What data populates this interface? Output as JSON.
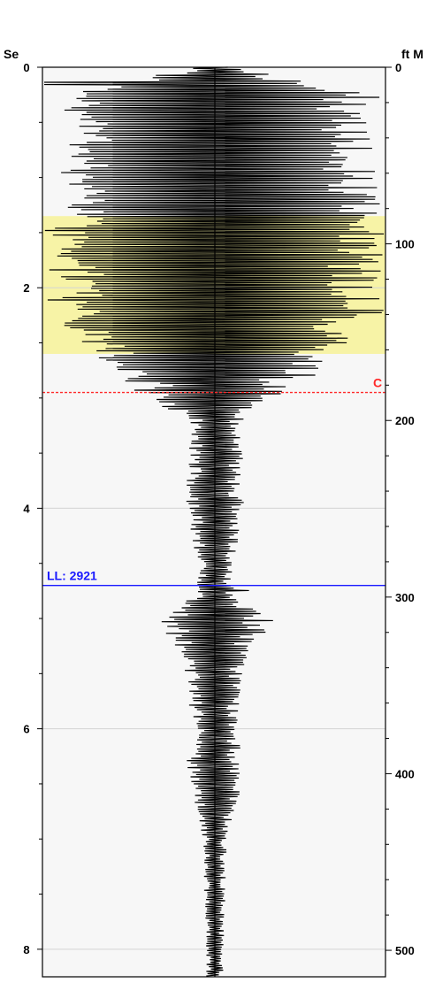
{
  "chart_data": {
    "type": "line",
    "left_axis": {
      "title": "Se",
      "range": [
        0,
        8.25
      ],
      "major_ticks": [
        0,
        2,
        4,
        6,
        8
      ],
      "major_labels": [
        "0",
        "2",
        "4",
        "6",
        "8"
      ],
      "minor_step": 0.5
    },
    "right_axis": {
      "title": "ft M",
      "range": [
        0,
        515
      ],
      "major_ticks": [
        0,
        100,
        200,
        300,
        400,
        500
      ],
      "major_labels": [
        "0",
        "100",
        "200",
        "300",
        "400",
        "500"
      ],
      "minor_step": 20
    },
    "grid": true,
    "highlight_zone": {
      "from": 1.35,
      "to": 2.6,
      "color": "#f7f3a6"
    },
    "markers": [
      {
        "name": "c-marker",
        "label": "C",
        "at": 2.95,
        "color": "#ff2a2a",
        "style": "dashed"
      },
      {
        "name": "ll-marker",
        "label": "LL: 2921",
        "at": 4.7,
        "color": "#1a1aff",
        "style": "solid"
      }
    ],
    "trace": {
      "color": "#000000",
      "amplitude_envelope": [
        [
          0.0,
          0.1
        ],
        [
          0.25,
          1.0
        ],
        [
          0.4,
          0.88
        ],
        [
          1.35,
          1.0
        ],
        [
          2.2,
          1.0
        ],
        [
          2.6,
          0.7
        ],
        [
          2.95,
          0.5
        ],
        [
          3.2,
          0.16
        ],
        [
          4.0,
          0.17
        ],
        [
          4.6,
          0.1
        ],
        [
          4.8,
          0.12
        ],
        [
          5.0,
          0.38
        ],
        [
          5.3,
          0.2
        ],
        [
          6.0,
          0.13
        ],
        [
          6.4,
          0.18
        ],
        [
          7.0,
          0.07
        ],
        [
          8.25,
          0.05
        ]
      ],
      "blowouts": [
        {
          "at": 0.14,
          "left": 1.0,
          "right": 1.0
        },
        {
          "at": 0.16,
          "left": 1.0,
          "right": 1.0
        },
        {
          "at": 4.75,
          "left": 1.0,
          "right": 0.2
        }
      ]
    }
  }
}
